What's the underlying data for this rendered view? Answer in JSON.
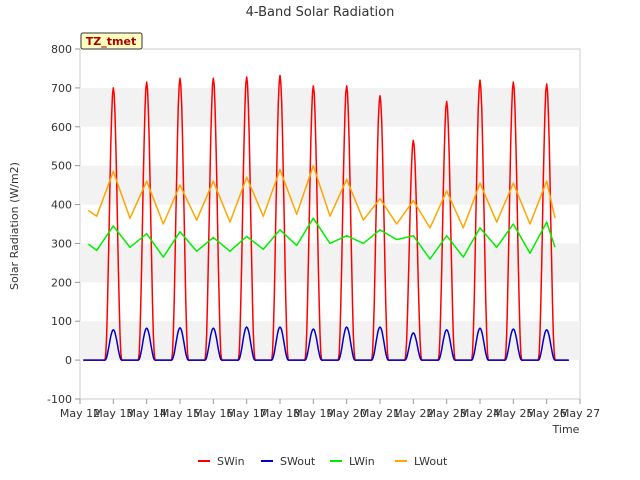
{
  "chart_data": {
    "type": "line",
    "title": "4-Band Solar Radiation",
    "xlabel": "Time",
    "ylabel": "Solar Radiation (W/m2)",
    "annotation": "TZ_tmet",
    "ylim": [
      -100,
      800
    ],
    "yticks": [
      -100,
      0,
      100,
      200,
      300,
      400,
      500,
      600,
      700,
      800
    ],
    "xlim": [
      12,
      27
    ],
    "xticks": [
      12,
      13,
      14,
      15,
      16,
      17,
      18,
      19,
      20,
      21,
      22,
      23,
      24,
      25,
      26,
      27
    ],
    "xtick_labels": [
      "May 12",
      "May 13",
      "May 14",
      "May 15",
      "May 16",
      "May 17",
      "May 18",
      "May 19",
      "May 20",
      "May 21",
      "May 22",
      "May 23",
      "May 24",
      "May 25",
      "May 26",
      "May 27"
    ],
    "legend_position": "bottom",
    "grid": "horizontal alternating bands",
    "series": [
      {
        "name": "SWin",
        "color": "#ff0000",
        "daily_peak_day": [
          13,
          14,
          15,
          16,
          17,
          18,
          19,
          20,
          21,
          22,
          23,
          24,
          25,
          26
        ],
        "values": [
          700,
          715,
          725,
          725,
          728,
          732,
          705,
          705,
          680,
          565,
          665,
          720,
          715,
          710
        ]
      },
      {
        "name": "SWout",
        "color": "#0000cc",
        "daily_peak_day": [
          13,
          14,
          15,
          16,
          17,
          18,
          19,
          20,
          21,
          22,
          23,
          24,
          25,
          26
        ],
        "values": [
          78,
          82,
          83,
          82,
          85,
          85,
          80,
          85,
          85,
          70,
          78,
          82,
          80,
          78
        ]
      },
      {
        "name": "LWin",
        "color": "#00ee00",
        "x": [
          12.25,
          12.5,
          13,
          13.5,
          14,
          14.5,
          15,
          15.5,
          16,
          16.5,
          17,
          17.5,
          18,
          18.5,
          19,
          19.5,
          20,
          20.5,
          21,
          21.5,
          22,
          22.5,
          23,
          23.5,
          24,
          24.5,
          25,
          25.5,
          26,
          26.25
        ],
        "values": [
          298,
          282,
          345,
          290,
          325,
          265,
          330,
          280,
          315,
          280,
          318,
          285,
          335,
          295,
          365,
          300,
          320,
          300,
          335,
          310,
          320,
          260,
          320,
          265,
          340,
          290,
          350,
          275,
          355,
          290
        ]
      },
      {
        "name": "LWout",
        "color": "#ffa500",
        "x": [
          12.25,
          12.5,
          13,
          13.5,
          14,
          14.5,
          15,
          15.5,
          16,
          16.5,
          17,
          17.5,
          18,
          18.5,
          19,
          19.5,
          20,
          20.5,
          21,
          21.5,
          22,
          22.5,
          23,
          23.5,
          24,
          24.5,
          25,
          25.5,
          26,
          26.25
        ],
        "values": [
          385,
          370,
          485,
          365,
          460,
          350,
          450,
          360,
          460,
          355,
          470,
          370,
          490,
          375,
          500,
          370,
          465,
          360,
          415,
          350,
          410,
          340,
          435,
          340,
          455,
          355,
          455,
          350,
          460,
          365
        ]
      }
    ]
  }
}
